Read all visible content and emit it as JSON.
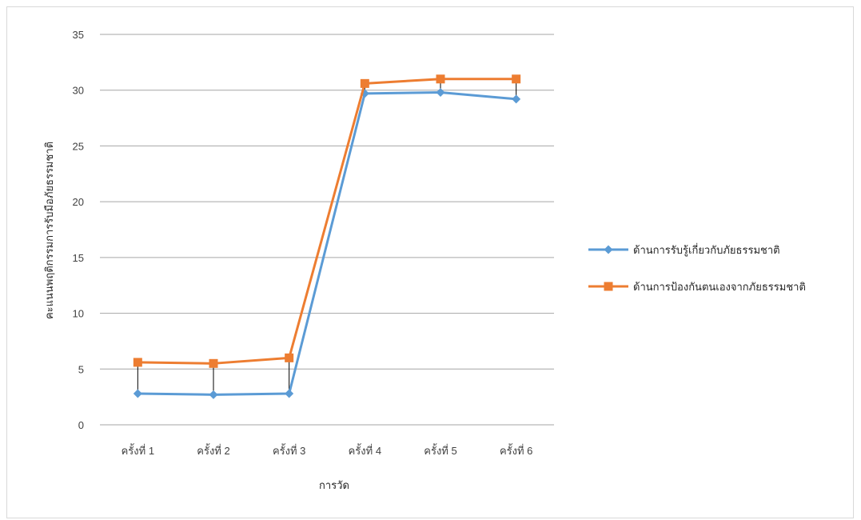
{
  "chart_data": {
    "type": "line",
    "title": "",
    "xlabel": "การวัด",
    "ylabel": "คะแนนพฤติกรรมการรับมือภัยธรรมชาติ",
    "categories": [
      "ครั้งที่ 1",
      "ครั้งที่ 2",
      "ครั้งที่ 3",
      "ครั้งที่ 4",
      "ครั้งที่ 5",
      "ครั้งที่ 6"
    ],
    "ylim": [
      0,
      35
    ],
    "yticks": [
      0,
      5,
      10,
      15,
      20,
      25,
      30,
      35
    ],
    "grid": true,
    "legend_position": "right",
    "drop_lines": true,
    "series": [
      {
        "name": "ด้านการรับรู้เกี่ยวกับภัยธรรมชาติ",
        "values": [
          2.8,
          2.7,
          2.8,
          29.7,
          29.8,
          29.2
        ],
        "color": "#5b9bd5",
        "marker": "diamond"
      },
      {
        "name": "ด้านการป้องกันตนเองจากภัยธรรมชาติ",
        "values": [
          5.6,
          5.5,
          6.0,
          30.6,
          31.0,
          31.0
        ],
        "color": "#ed7d31",
        "marker": "square"
      }
    ]
  }
}
